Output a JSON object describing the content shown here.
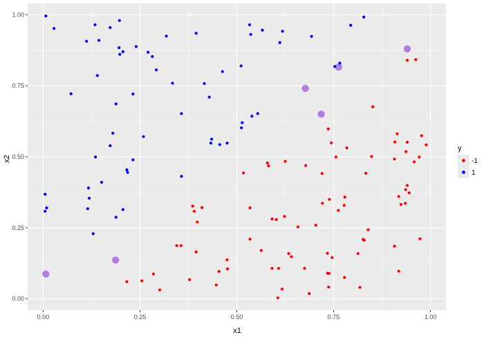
{
  "chart_data": {
    "type": "scatter",
    "xlabel": "x1",
    "ylabel": "x2",
    "xlim": [
      -0.04,
      1.04
    ],
    "ylim": [
      -0.04,
      1.04
    ],
    "x_ticks": [
      0.0,
      0.25,
      0.5,
      0.75,
      1.0
    ],
    "x_tick_labels": [
      "0.00",
      "0.25",
      "0.50",
      "0.75",
      "1.00"
    ],
    "y_ticks": [
      0.0,
      0.25,
      0.5,
      0.75,
      1.0
    ],
    "y_tick_labels": [
      "0.00",
      "0.25",
      "0.50",
      "0.75",
      "1.00"
    ],
    "grid": true,
    "legend": {
      "title": "y",
      "placement": "right"
    },
    "series": [
      {
        "name": "-1",
        "color": "#ff0000",
        "points": [
          [
            0.94,
            0.84
          ],
          [
            0.962,
            0.842
          ],
          [
            0.851,
            0.676
          ],
          [
            0.736,
            0.598
          ],
          [
            0.914,
            0.581
          ],
          [
            0.977,
            0.574
          ],
          [
            0.784,
            0.531
          ],
          [
            0.744,
            0.549
          ],
          [
            0.908,
            0.552
          ],
          [
            0.94,
            0.551
          ],
          [
            0.989,
            0.542
          ],
          [
            0.937,
            0.518
          ],
          [
            0.756,
            0.499
          ],
          [
            0.848,
            0.501
          ],
          [
            0.971,
            0.499
          ],
          [
            0.907,
            0.492
          ],
          [
            0.958,
            0.482
          ],
          [
            0.625,
            0.484
          ],
          [
            0.579,
            0.478
          ],
          [
            0.582,
            0.468
          ],
          [
            0.678,
            0.469
          ],
          [
            0.517,
            0.443
          ],
          [
            0.72,
            0.441
          ],
          [
            0.833,
            0.442
          ],
          [
            0.94,
            0.399
          ],
          [
            0.936,
            0.384
          ],
          [
            0.945,
            0.373
          ],
          [
            0.918,
            0.36
          ],
          [
            0.779,
            0.358
          ],
          [
            0.739,
            0.35
          ],
          [
            0.721,
            0.336
          ],
          [
            0.924,
            0.332
          ],
          [
            0.935,
            0.336
          ],
          [
            0.777,
            0.329
          ],
          [
            0.386,
            0.326
          ],
          [
            0.41,
            0.321
          ],
          [
            0.534,
            0.32
          ],
          [
            0.39,
            0.308
          ],
          [
            0.762,
            0.311
          ],
          [
            0.623,
            0.29
          ],
          [
            0.591,
            0.281
          ],
          [
            0.602,
            0.279
          ],
          [
            0.398,
            0.27
          ],
          [
            0.704,
            0.259
          ],
          [
            0.658,
            0.253
          ],
          [
            0.839,
            0.243
          ],
          [
            0.534,
            0.21
          ],
          [
            0.826,
            0.209
          ],
          [
            0.829,
            0.206
          ],
          [
            0.973,
            0.211
          ],
          [
            0.345,
            0.187
          ],
          [
            0.356,
            0.187
          ],
          [
            0.907,
            0.185
          ],
          [
            0.563,
            0.17
          ],
          [
            0.395,
            0.165
          ],
          [
            0.734,
            0.16
          ],
          [
            0.813,
            0.159
          ],
          [
            0.634,
            0.159
          ],
          [
            0.641,
            0.148
          ],
          [
            0.746,
            0.145
          ],
          [
            0.475,
            0.137
          ],
          [
            0.476,
            0.105
          ],
          [
            0.591,
            0.107
          ],
          [
            0.608,
            0.107
          ],
          [
            0.675,
            0.107
          ],
          [
            0.454,
            0.096
          ],
          [
            0.734,
            0.09
          ],
          [
            0.738,
            0.089
          ],
          [
            0.918,
            0.097
          ],
          [
            0.285,
            0.087
          ],
          [
            0.778,
            0.075
          ],
          [
            0.378,
            0.067
          ],
          [
            0.255,
            0.063
          ],
          [
            0.216,
            0.06
          ],
          [
            0.447,
            0.048
          ],
          [
            0.737,
            0.041
          ],
          [
            0.818,
            0.04
          ],
          [
            0.301,
            0.031
          ],
          [
            0.617,
            0.034
          ],
          [
            0.687,
            0.018
          ],
          [
            0.606,
            0.003
          ]
        ]
      },
      {
        "name": "1",
        "color": "#0000ff",
        "points": [
          [
            0.007,
            0.996
          ],
          [
            0.028,
            0.952
          ],
          [
            0.197,
            0.98
          ],
          [
            0.134,
            0.965
          ],
          [
            0.173,
            0.955
          ],
          [
            0.533,
            0.965
          ],
          [
            0.566,
            0.946
          ],
          [
            0.618,
            0.942
          ],
          [
            0.828,
            0.992
          ],
          [
            0.794,
            0.963
          ],
          [
            0.395,
            0.935
          ],
          [
            0.536,
            0.931
          ],
          [
            0.318,
            0.925
          ],
          [
            0.693,
            0.924
          ],
          [
            0.112,
            0.907
          ],
          [
            0.144,
            0.91
          ],
          [
            0.611,
            0.902
          ],
          [
            0.24,
            0.888
          ],
          [
            0.196,
            0.884
          ],
          [
            0.206,
            0.87
          ],
          [
            0.271,
            0.868
          ],
          [
            0.198,
            0.861
          ],
          [
            0.282,
            0.853
          ],
          [
            0.766,
            0.83
          ],
          [
            0.753,
            0.818
          ],
          [
            0.511,
            0.82
          ],
          [
            0.292,
            0.806
          ],
          [
            0.463,
            0.8
          ],
          [
            0.14,
            0.786
          ],
          [
            0.334,
            0.759
          ],
          [
            0.416,
            0.758
          ],
          [
            0.072,
            0.722
          ],
          [
            0.232,
            0.721
          ],
          [
            0.429,
            0.71
          ],
          [
            0.188,
            0.686
          ],
          [
            0.357,
            0.652
          ],
          [
            0.554,
            0.652
          ],
          [
            0.539,
            0.643
          ],
          [
            0.514,
            0.62
          ],
          [
            0.512,
            0.602
          ],
          [
            0.18,
            0.583
          ],
          [
            0.259,
            0.571
          ],
          [
            0.435,
            0.562
          ],
          [
            0.433,
            0.548
          ],
          [
            0.475,
            0.548
          ],
          [
            0.456,
            0.543
          ],
          [
            0.173,
            0.539
          ],
          [
            0.135,
            0.499
          ],
          [
            0.232,
            0.489
          ],
          [
            0.216,
            0.454
          ],
          [
            0.218,
            0.445
          ],
          [
            0.357,
            0.431
          ],
          [
            0.151,
            0.41
          ],
          [
            0.117,
            0.39
          ],
          [
            0.005,
            0.368
          ],
          [
            0.119,
            0.354
          ],
          [
            0.009,
            0.32
          ],
          [
            0.115,
            0.317
          ],
          [
            0.206,
            0.314
          ],
          [
            0.005,
            0.308
          ],
          [
            0.188,
            0.287
          ],
          [
            0.129,
            0.229
          ]
        ]
      }
    ],
    "highlighted_points": [
      [
        0.94,
        0.88
      ],
      [
        0.677,
        0.741
      ],
      [
        0.763,
        0.816
      ],
      [
        0.718,
        0.65
      ],
      [
        0.187,
        0.136
      ],
      [
        0.007,
        0.087
      ]
    ],
    "highlight_color": "#9b4fd8"
  }
}
